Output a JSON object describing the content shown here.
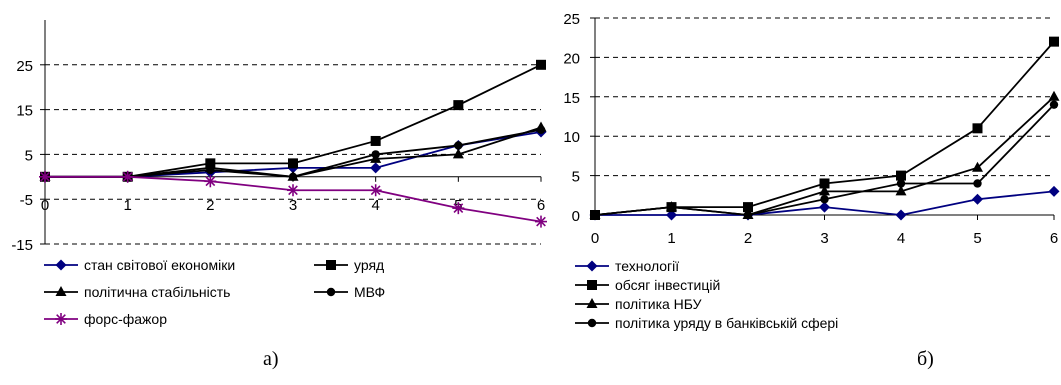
{
  "chart_data": [
    {
      "type": "line",
      "x": [
        0,
        1,
        2,
        3,
        4,
        5,
        6
      ],
      "ylim": [
        -15,
        35
      ],
      "yticks": [
        -15,
        -5,
        5,
        15,
        25
      ],
      "grid": "horizontal-dashed",
      "legend_position": "bottom",
      "series": [
        {
          "name": "стан світової економіки",
          "values": [
            0,
            0,
            1,
            2,
            2,
            7,
            10
          ],
          "color": "#000080",
          "marker": "diamond"
        },
        {
          "name": "уряд",
          "values": [
            0,
            0,
            3,
            3,
            8,
            16,
            25
          ],
          "color": "#000000",
          "marker": "square"
        },
        {
          "name": "політична стабільність",
          "values": [
            0,
            0,
            2,
            0,
            4,
            5,
            11
          ],
          "color": "#000000",
          "marker": "triangle"
        },
        {
          "name": "МВФ",
          "values": [
            0,
            0,
            1.5,
            0,
            5,
            7,
            10.5
          ],
          "color": "#000000",
          "marker": "circle"
        },
        {
          "name": "форс-фажор",
          "values": [
            0,
            0,
            -1,
            -3,
            -3,
            -7,
            -10
          ],
          "color": "#800080",
          "marker": "star"
        }
      ]
    },
    {
      "type": "line",
      "x": [
        0,
        1,
        2,
        3,
        4,
        5,
        6
      ],
      "ylim": [
        0,
        25
      ],
      "yticks": [
        0,
        5,
        10,
        15,
        20,
        25
      ],
      "grid": "horizontal-dashed",
      "legend_position": "bottom",
      "series": [
        {
          "name": "технології",
          "values": [
            0,
            0,
            0,
            1,
            0,
            2,
            3
          ],
          "color": "#000080",
          "marker": "diamond"
        },
        {
          "name": "обсяг інвестицій",
          "values": [
            0,
            1,
            1,
            4,
            5,
            11,
            22
          ],
          "color": "#000000",
          "marker": "square"
        },
        {
          "name": "політика НБУ",
          "values": [
            0,
            1,
            0,
            3,
            3,
            6,
            15
          ],
          "color": "#000000",
          "marker": "triangle"
        },
        {
          "name": "політика уряду в банківській сфері",
          "values": [
            0,
            1,
            0,
            2,
            4,
            4,
            14
          ],
          "color": "#000000",
          "marker": "circle"
        }
      ]
    }
  ],
  "captions": {
    "left": "а)",
    "right": "б)"
  }
}
